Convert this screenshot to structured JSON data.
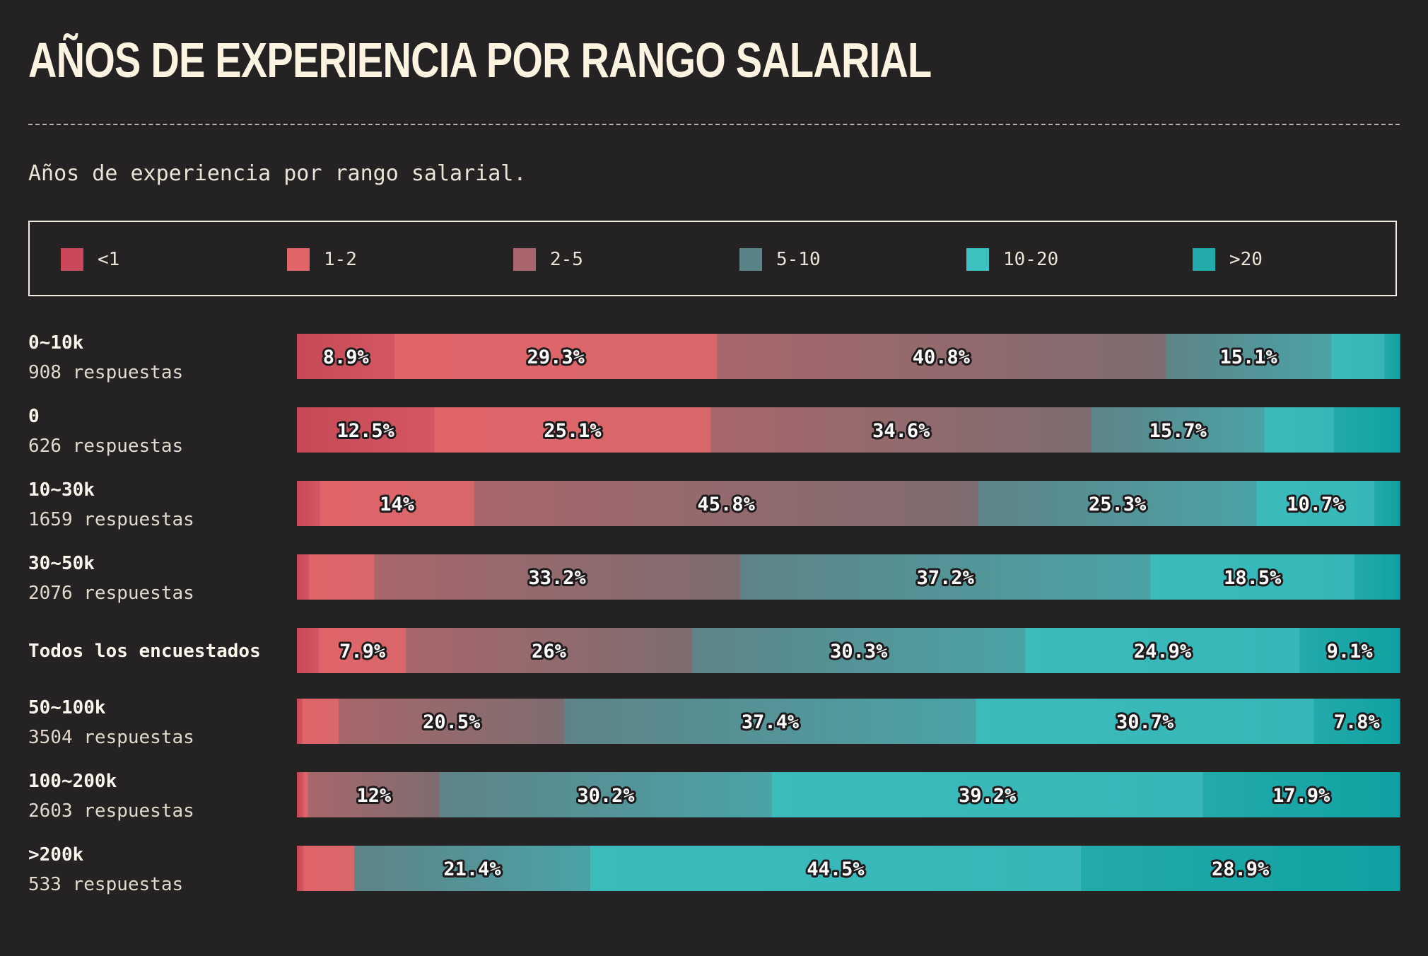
{
  "chart_data": {
    "type": "bar",
    "orientation": "horizontal",
    "stacked": true,
    "normalized_percent": true,
    "title": "AÑOS DE EXPERIENCIA POR RANGO SALARIAL",
    "subtitle": "Años de experiencia por rango salarial.",
    "xlim": [
      0,
      100
    ],
    "legend": [
      {
        "name": "<1",
        "color": "#c9485b"
      },
      {
        "name": "1-2",
        "color": "#e06468"
      },
      {
        "name": "2-5",
        "color": "#a9656c"
      },
      {
        "name": "5-10",
        "color": "#5a8387"
      },
      {
        "name": "10-20",
        "color": "#3dc0c0"
      },
      {
        "name": ">20",
        "color": "#22abab"
      }
    ],
    "series_colors": {
      "<1": [
        "#c54a55",
        "#d45763"
      ],
      "1-2": [
        "#e06569",
        "#d8666b"
      ],
      "2-5": [
        "#a8676b",
        "#7d6d70"
      ],
      "5-10": [
        "#5e8487",
        "#4aa3a6"
      ],
      "10-20": [
        "#3cbbbb",
        "#36b6b8"
      ],
      ">20": [
        "#23aaaa",
        "#0fa2a2"
      ]
    },
    "rows": [
      {
        "label": "0~10k",
        "count": "908 respuestas",
        "values": [
          8.9,
          29.3,
          40.8,
          15.1,
          4.8,
          1.4
        ],
        "labels": [
          "8.9%",
          "29.3%",
          "40.8%",
          "15.1%",
          "",
          ""
        ]
      },
      {
        "label": "0",
        "count": "626 respuestas",
        "values": [
          12.5,
          25.1,
          34.6,
          15.7,
          6.3,
          6.0
        ],
        "labels": [
          "12.5%",
          "25.1%",
          "34.6%",
          "15.7%",
          "",
          ""
        ]
      },
      {
        "label": "10~30k",
        "count": "1659 respuestas",
        "values": [
          2.1,
          14,
          45.8,
          25.3,
          10.7,
          2.3
        ],
        "labels": [
          "",
          "14%",
          "45.8%",
          "25.3%",
          "10.7%",
          ""
        ]
      },
      {
        "label": "30~50k",
        "count": "2076 respuestas",
        "values": [
          1.1,
          5.9,
          33.2,
          37.2,
          18.5,
          4.1
        ],
        "labels": [
          "",
          "",
          "33.2%",
          "37.2%",
          "18.5%",
          ""
        ]
      },
      {
        "label": "Todos los encuestados",
        "count": "",
        "values": [
          2.0,
          7.9,
          26,
          30.3,
          24.9,
          9.1
        ],
        "labels": [
          "",
          "7.9%",
          "26%",
          "30.3%",
          "24.9%",
          "9.1%"
        ]
      },
      {
        "label": "50~100k",
        "count": "3504 respuestas",
        "values": [
          0.5,
          3.3,
          20.5,
          37.4,
          30.7,
          7.8
        ],
        "labels": [
          "",
          "",
          "20.5%",
          "37.4%",
          "30.7%",
          "7.8%"
        ]
      },
      {
        "label": "100~200k",
        "count": "2603 respuestas",
        "values": [
          0.6,
          0.4,
          12,
          30.2,
          39.2,
          17.9
        ],
        "labels": [
          "",
          "",
          "12%",
          "30.2%",
          "39.2%",
          "17.9%"
        ]
      },
      {
        "label": ">200k",
        "count": "533 respuestas",
        "values": [
          0.6,
          4.6,
          0.0,
          21.4,
          44.5,
          28.9
        ],
        "labels": [
          "",
          "",
          "",
          "21.4%",
          "44.5%",
          "28.9%"
        ]
      }
    ]
  }
}
